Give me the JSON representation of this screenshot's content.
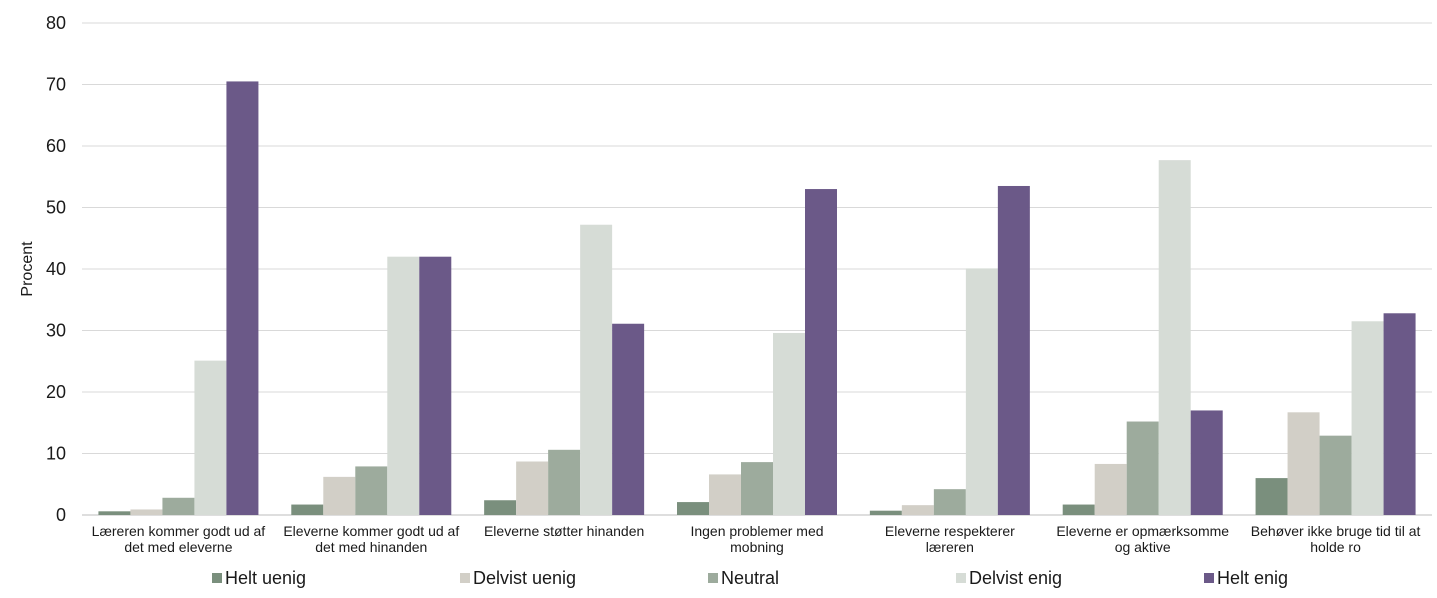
{
  "chart_data": {
    "type": "bar",
    "title": "",
    "xlabel": "",
    "ylabel": "Procent",
    "ylim": [
      0,
      80
    ],
    "yticks": [
      0,
      10,
      20,
      30,
      40,
      50,
      60,
      70,
      80
    ],
    "grid": "horizontal",
    "legend_position": "bottom",
    "categories": [
      [
        "Læreren kommer godt ud af",
        "det med eleverne"
      ],
      [
        "Eleverne kommer godt ud af",
        "det med hinanden"
      ],
      [
        "Eleverne støtter hinanden"
      ],
      [
        "Ingen problemer med",
        "mobning"
      ],
      [
        "Eleverne respekterer",
        "læreren"
      ],
      [
        "Eleverne er opmærksomme",
        "og aktive"
      ],
      [
        "Behøver ikke bruge tid til at",
        "holde ro"
      ]
    ],
    "series": [
      {
        "name": "Helt uenig",
        "color": "#7a8f7d",
        "values": [
          0.6,
          1.7,
          2.4,
          2.1,
          0.7,
          1.7,
          6.0
        ]
      },
      {
        "name": "Delvist uenig",
        "color": "#d2cfc7",
        "values": [
          0.9,
          6.2,
          8.7,
          6.6,
          1.6,
          8.3,
          16.7
        ]
      },
      {
        "name": "Neutral",
        "color": "#9dab9d",
        "values": [
          2.8,
          7.9,
          10.6,
          8.6,
          4.2,
          15.2,
          12.9
        ]
      },
      {
        "name": "Delvist enig",
        "color": "#d6dcd6",
        "values": [
          25.1,
          42.0,
          47.2,
          29.6,
          40.1,
          57.7,
          31.5
        ]
      },
      {
        "name": "Helt enig",
        "color": "#6b5988",
        "values": [
          70.5,
          42.0,
          31.1,
          53.0,
          53.5,
          17.0,
          32.8
        ]
      }
    ]
  }
}
